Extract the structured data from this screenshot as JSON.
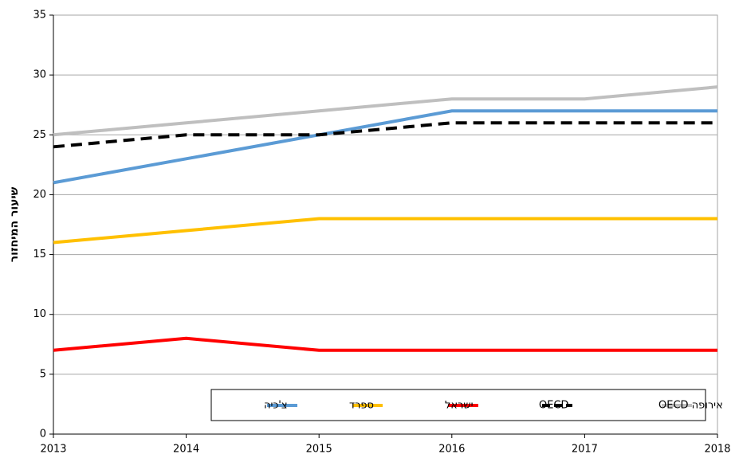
{
  "chart_data": {
    "type": "line",
    "y_label": "שיעור המיחזור",
    "x": [
      2013,
      2014,
      2015,
      2016,
      2017,
      2018
    ],
    "xlim": [
      2013,
      2018
    ],
    "xticks": [
      2013,
      2014,
      2015,
      2016,
      2017,
      2018
    ],
    "ylim": [
      0,
      35
    ],
    "yticks": [
      0,
      5,
      10,
      15,
      20,
      25,
      30,
      35
    ],
    "grid": true,
    "legend": "bottom-right",
    "series": [
      {
        "name": "צ'כיה",
        "color": "#5b9bd5",
        "values": [
          21,
          23,
          25,
          27,
          27,
          27
        ]
      },
      {
        "name": "ספרד",
        "color": "#ffc000",
        "values": [
          16,
          17,
          18,
          18,
          18,
          18
        ]
      },
      {
        "name": "ישראל",
        "color": "#ff0000",
        "values": [
          7,
          8,
          7,
          7,
          7,
          7
        ]
      },
      {
        "name": "OECD",
        "color": "#000000",
        "dashed": true,
        "values": [
          24,
          25,
          25,
          26,
          26,
          26
        ]
      },
      {
        "name": "אירופה OECD",
        "color": "#bfbfbf",
        "values": [
          25,
          26,
          27,
          28,
          28,
          29
        ]
      }
    ]
  }
}
